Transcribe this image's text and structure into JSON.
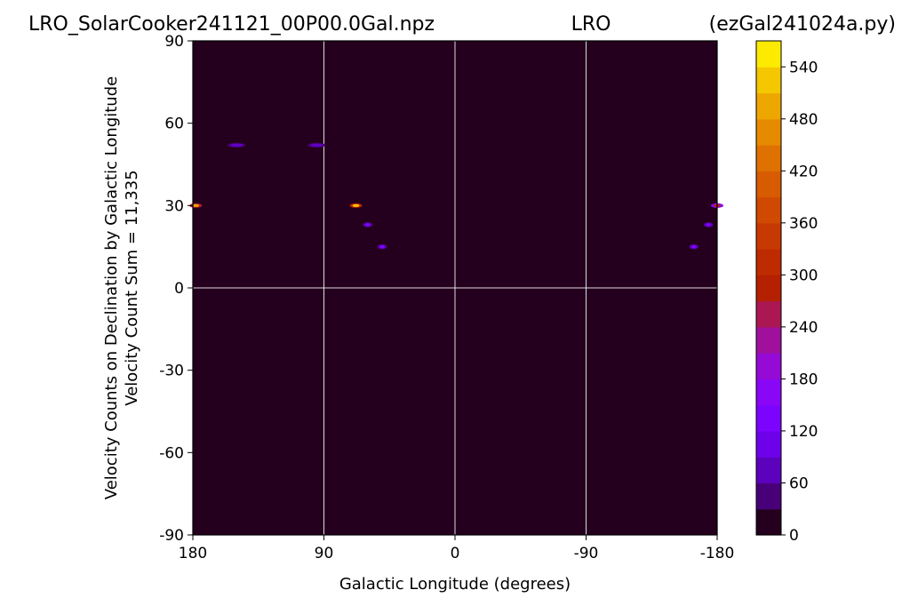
{
  "chart_data": {
    "type": "heatmap",
    "title_left": "LRO_SolarCooker241121_00P00.0Gal.npz",
    "title_center": "LRO",
    "title_right": "(ezGal241024a.py)",
    "xlabel": "Galactic Longitude (degrees)",
    "ylabel_line1": "Velocity Counts on Declination by Galactic Longitude",
    "ylabel_line2": "Velocity Count Sum = 11,335",
    "xlim": [
      180,
      -180
    ],
    "ylim": [
      -90,
      90
    ],
    "x_ticks": [
      180,
      90,
      0,
      -90,
      -180
    ],
    "y_ticks": [
      90,
      60,
      30,
      0,
      -30,
      -60,
      -90
    ],
    "grid": true,
    "colorbar": {
      "min": 0,
      "max": 570,
      "ticks": [
        0,
        60,
        120,
        180,
        240,
        300,
        360,
        420,
        480,
        540
      ],
      "levels": 19
    },
    "background_value": 0,
    "blobs": [
      {
        "lon": 178,
        "dec": 30,
        "value": 490
      },
      {
        "lon": 150,
        "dec": 52,
        "value": 80
      },
      {
        "lon": 95,
        "dec": 52,
        "value": 80
      },
      {
        "lon": 68,
        "dec": 30,
        "value": 520
      },
      {
        "lon": 60,
        "dec": 23,
        "value": 150
      },
      {
        "lon": 50,
        "dec": 15,
        "value": 150
      },
      {
        "lon": -164,
        "dec": 15,
        "value": 150
      },
      {
        "lon": -174,
        "dec": 23,
        "value": 150
      },
      {
        "lon": -180,
        "dec": 30,
        "value": 300
      }
    ]
  }
}
